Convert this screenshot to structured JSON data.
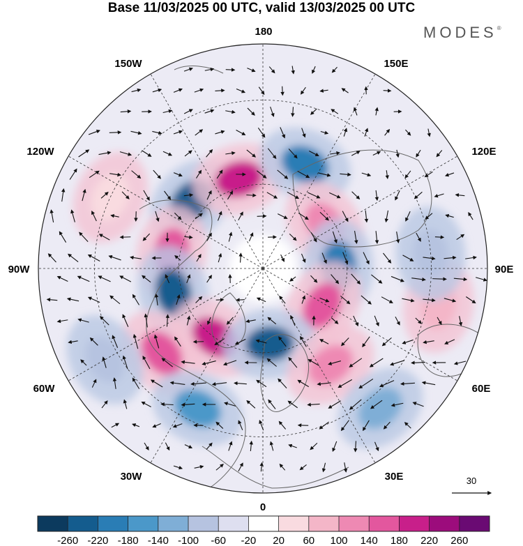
{
  "title": "Base 11/03/2025 00 UTC, valid 13/03/2025 00 UTC",
  "brand": "MODES",
  "brand_mark": "®",
  "longitude_labels": {
    "n180": "180",
    "w150": "150W",
    "e150": "150E",
    "w120": "120W",
    "e120": "120E",
    "w90": "90W",
    "e90": "90E",
    "w60": "60W",
    "e60": "60E",
    "w30": "30W",
    "e30": "30E",
    "z0": "0"
  },
  "reference_vector_label": "30",
  "colorbar": {
    "ticks": [
      "-260",
      "-220",
      "-180",
      "-140",
      "-100",
      "-60",
      "-20",
      "20",
      "60",
      "100",
      "140",
      "180",
      "220",
      "260"
    ],
    "colors": [
      "#0c3a5e",
      "#145c8e",
      "#2a7db5",
      "#4b98c9",
      "#7faed6",
      "#b6c3e0",
      "#dedff0",
      "#ffffff",
      "#f9dbe0",
      "#f4b6c8",
      "#ee89b3",
      "#e3579e",
      "#c81f8a",
      "#9c0c7c",
      "#6a0a73"
    ]
  },
  "anomaly_centers": [
    {
      "kind": "low",
      "lon": -133,
      "lat": 55,
      "color": "#145c8e"
    },
    {
      "kind": "high",
      "lon": -165,
      "lat": 57,
      "color": "#c81f8a"
    },
    {
      "kind": "low",
      "lon": 158,
      "lat": 50,
      "color": "#2a7db5"
    },
    {
      "kind": "high",
      "lon": 125,
      "lat": 63,
      "color": "#ee89b3"
    },
    {
      "kind": "high",
      "lon": -100,
      "lat": 57,
      "color": "#e3579e"
    },
    {
      "kind": "low",
      "lon": 92,
      "lat": 63,
      "color": "#2a7db5"
    },
    {
      "kind": "low",
      "lon": -75,
      "lat": 57,
      "color": "#145c8e"
    },
    {
      "kind": "high",
      "lon": 58,
      "lat": 65,
      "color": "#e3579e"
    },
    {
      "kind": "high",
      "lon": -35,
      "lat": 60,
      "color": "#c81f8a"
    },
    {
      "kind": "high",
      "lon": -50,
      "lat": 43,
      "color": "#e3579e"
    },
    {
      "kind": "low",
      "lon": 5,
      "lat": 63,
      "color": "#145c8e"
    },
    {
      "kind": "high",
      "lon": 35,
      "lat": 48,
      "color": "#ee89b3"
    },
    {
      "kind": "low",
      "lon": -25,
      "lat": 35,
      "color": "#4b98c9"
    },
    {
      "kind": "low",
      "lon": 40,
      "lat": 25,
      "color": "#7faed6"
    },
    {
      "kind": "high",
      "lon": 78,
      "lat": 26,
      "color": "#f4b6c8"
    },
    {
      "kind": "low",
      "lon": -60,
      "lat": 25,
      "color": "#b6c3e0"
    },
    {
      "kind": "low",
      "lon": 95,
      "lat": 30,
      "color": "#b6c3e0"
    },
    {
      "kind": "high",
      "lon": -115,
      "lat": 30,
      "color": "#f9dbe0"
    }
  ]
}
